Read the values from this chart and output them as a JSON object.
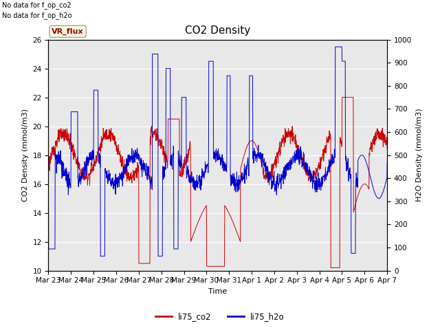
{
  "title": "CO2 Density",
  "xlabel": "Time",
  "ylabel_left": "CO2 Density (mmol/m3)",
  "ylabel_right": "H2O Density (mmol/m3)",
  "text_top_left_line1": "No data for f_op_co2",
  "text_top_left_line2": "No data for f_op_h2o",
  "vr_flux_label": "VR_flux",
  "legend_entries": [
    "li75_co2",
    "li75_h2o"
  ],
  "co2_color": "#cc0000",
  "h2o_color": "#0000cc",
  "ylim_left": [
    10,
    26
  ],
  "ylim_right": [
    0,
    1000
  ],
  "yticks_left": [
    10,
    12,
    14,
    16,
    18,
    20,
    22,
    24,
    26
  ],
  "yticks_right": [
    0,
    100,
    200,
    300,
    400,
    500,
    600,
    700,
    800,
    900,
    1000
  ],
  "xtick_labels": [
    "Mar 23",
    "Mar 24",
    "Mar 25",
    "Mar 26",
    "Mar 27",
    "Mar 28",
    "Mar 29",
    "Mar 30",
    "Mar 31",
    "Apr 1",
    "Apr 2",
    "Apr 3",
    "Apr 4",
    "Apr 5",
    "Apr 6",
    "Apr 7"
  ],
  "plot_bg_color": "#e8e8e8",
  "grid_color": "#ffffff",
  "title_fontsize": 11,
  "label_fontsize": 8,
  "tick_fontsize": 7.5
}
